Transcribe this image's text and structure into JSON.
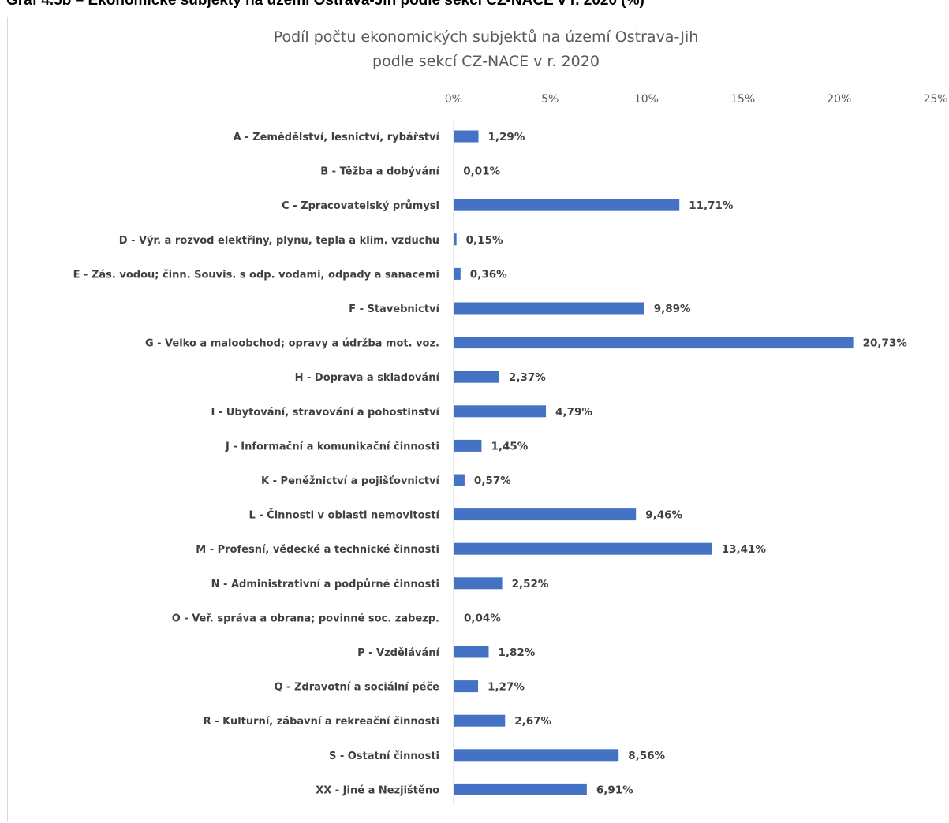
{
  "page": {
    "caption": "Graf 4.5b – Ekonomické subjekty na území Ostrava-Jih podle sekcí CZ-NACE v r. 2020 (%)"
  },
  "chart_data": {
    "type": "bar",
    "orientation": "horizontal",
    "title_lines": [
      "Podíl počtu ekonomických subjektů na území Ostrava-Jih",
      "podle sekcí CZ-NACE v r. 2020"
    ],
    "xlim": [
      0,
      25
    ],
    "x_ticks": [
      0,
      5,
      10,
      15,
      20,
      25
    ],
    "x_tick_labels": [
      "0%",
      "5%",
      "10%",
      "15%",
      "20%",
      "25%"
    ],
    "x_axis_position": "top",
    "grid": false,
    "legend": "none",
    "bar_color": "#4472c4",
    "categories": [
      "A - Zemědělství, lesnictví, rybářství",
      "B - Těžba a dobývání",
      "C - Zpracovatelský průmysl",
      "D - Výr. a rozvod elektřiny, plynu, tepla a klim. vzduchu",
      "E - Zás. vodou; činn. Souvis. s odp. vodami, odpady a sanacemi",
      "F - Stavebnictví",
      "G - Velko a maloobchod; opravy a údržba mot. voz.",
      "H - Doprava a skladování",
      "I - Ubytování, stravování a pohostinství",
      "J - Informační a komunikační činnosti",
      "K - Peněžnictví a pojišťovnictví",
      "L - Činnosti v oblasti nemovitostí",
      "M - Profesní, vědecké a technické činnosti",
      "N - Administrativní a podpůrné činnosti",
      "O - Veř. správa a obrana; povinné soc. zabezp.",
      "P - Vzdělávání",
      "Q - Zdravotní a sociální péče",
      "R - Kulturní, zábavní a rekreační činnosti",
      "S - Ostatní činnosti",
      "XX - Jiné a Nezjištěno"
    ],
    "values": [
      1.29,
      0.01,
      11.71,
      0.15,
      0.36,
      9.89,
      20.73,
      2.37,
      4.79,
      1.45,
      0.57,
      9.46,
      13.41,
      2.52,
      0.04,
      1.82,
      1.27,
      2.67,
      8.56,
      6.91
    ],
    "value_labels": [
      "1,29%",
      "0,01%",
      "11,71%",
      "0,15%",
      "0,36%",
      "9,89%",
      "20,73%",
      "2,37%",
      "4,79%",
      "1,45%",
      "0,57%",
      "9,46%",
      "13,41%",
      "2,52%",
      "0,04%",
      "1,82%",
      "1,27%",
      "2,67%",
      "8,56%",
      "6,91%"
    ]
  }
}
